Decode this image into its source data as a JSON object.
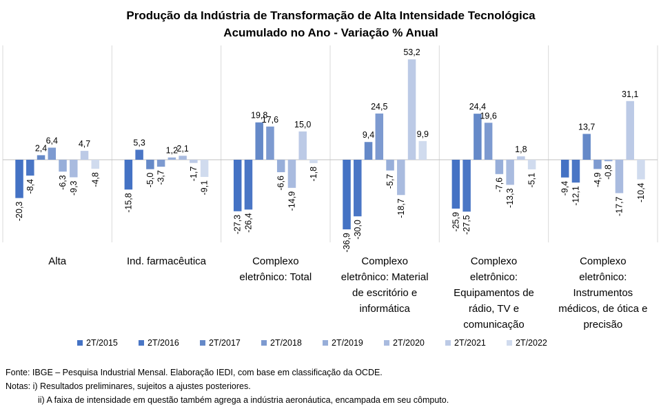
{
  "chart_data": {
    "type": "bar",
    "title": "Produção da Indústria de Transformação de Alta Intensidade Tecnológica",
    "subtitle": "Acumulado no Ano - Variação % Anual",
    "categories": [
      [
        "Alta"
      ],
      [
        "Ind. farmacêutica"
      ],
      [
        "Complexo",
        "eletrônico: Total"
      ],
      [
        "Complexo",
        "eletrônico: Material",
        "de escritório e",
        "informática"
      ],
      [
        "Complexo",
        "eletrônico:",
        "Equipamentos de",
        "rádio, TV e",
        "comunicação"
      ],
      [
        "Complexo",
        "eletrônico:",
        "Instrumentos",
        "médicos, de ótica e",
        "precisão"
      ]
    ],
    "series": [
      {
        "name": "2T/2015",
        "color": "#4472c4",
        "values": [
          -20.3,
          -15.8,
          -27.3,
          -36.9,
          -25.9,
          -9.4
        ]
      },
      {
        "name": "2T/2016",
        "color": "#4a76c5",
        "values": [
          -8.4,
          5.3,
          -26.4,
          -30.0,
          -27.5,
          -12.1
        ]
      },
      {
        "name": "2T/2017",
        "color": "#6589c8",
        "values": [
          2.4,
          -5.0,
          19.8,
          9.4,
          24.4,
          13.7
        ]
      },
      {
        "name": "2T/2018",
        "color": "#7d9ad0",
        "values": [
          6.4,
          -3.7,
          17.6,
          24.5,
          19.6,
          -4.9
        ]
      },
      {
        "name": "2T/2019",
        "color": "#97aed9",
        "values": [
          -6.3,
          1.2,
          -6.6,
          -5.7,
          -7.6,
          -0.8
        ]
      },
      {
        "name": "2T/2020",
        "color": "#a9bbdf",
        "values": [
          -9.3,
          2.1,
          -14.9,
          -18.7,
          -13.3,
          -17.7
        ]
      },
      {
        "name": "2T/2021",
        "color": "#bccae6",
        "values": [
          4.7,
          -1.7,
          15.0,
          53.2,
          1.8,
          31.1
        ]
      },
      {
        "name": "2T/2022",
        "color": "#d0dbee",
        "values": [
          -4.8,
          -9.1,
          -1.8,
          9.9,
          -5.1,
          -10.4
        ]
      }
    ],
    "value_labels": [
      [
        "-20,3",
        "-15,8",
        "-27,3",
        "-36,9",
        "-25,9",
        "-9,4"
      ],
      [
        "-8,4",
        "5,3",
        "-26,4",
        "-30,0",
        "-27,5",
        "-12,1"
      ],
      [
        "2,4",
        "-5,0",
        "19,8",
        "9,4",
        "24,4",
        "13,7"
      ],
      [
        "6,4",
        "-3,7",
        "17,6",
        "24,5",
        "19,6",
        "-4,9"
      ],
      [
        "-6,3",
        "1,2",
        "-6,6",
        "-5,7",
        "-7,6",
        "-0,8"
      ],
      [
        "-9,3",
        "2,1",
        "-14,9",
        "-18,7",
        "-13,3",
        "-17,7"
      ],
      [
        "4,7",
        "-1,7",
        "15,0",
        "53,2",
        "1,8",
        "31,1"
      ],
      [
        "-4,8",
        "-9,1",
        "-1,8",
        "9,9",
        "-5,1",
        "-10,4"
      ]
    ],
    "grid": false,
    "legend_position": "bottom"
  },
  "footer": {
    "source": "Fonte: IBGE – Pesquisa Industrial Mensal. Elaboração IEDI, com base em classificação da OCDE.",
    "note1": "Notas: i) Resultados preliminares, sujeitos a ajustes posteriores.",
    "note2": "ii) A faixa de intensidade em questão também agrega a indústria aeronáutica, encampada em seu cômputo."
  }
}
